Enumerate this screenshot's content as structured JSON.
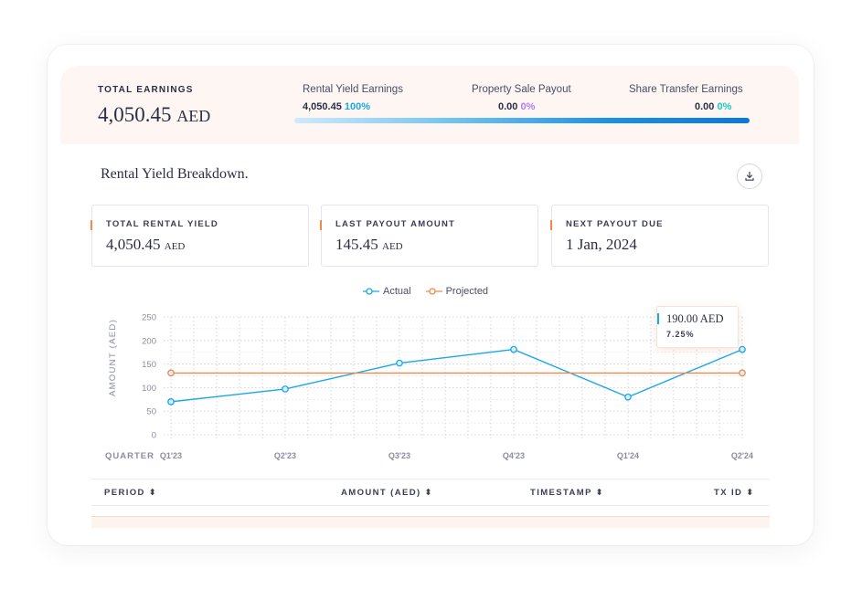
{
  "summary": {
    "total_label": "TOTAL EARNINGS",
    "total_amount": "4,050.45",
    "total_unit": "AED",
    "sources": [
      {
        "label": "Rental Yield Earnings",
        "amount": "4,050.45",
        "pct": "100%"
      },
      {
        "label": "Property Sale Payout",
        "amount": "0.00",
        "pct": "0%"
      },
      {
        "label": "Share Transfer Earnings",
        "amount": "0.00",
        "pct": "0%"
      }
    ]
  },
  "section": {
    "title": "Rental Yield Breakdown.",
    "download_icon": "download-icon"
  },
  "stats": [
    {
      "label": "TOTAL RENTAL YIELD",
      "value": "4,050.45",
      "unit": "AED"
    },
    {
      "label": "LAST PAYOUT AMOUNT",
      "value": "145.45",
      "unit": "AED"
    },
    {
      "label": "NEXT PAYOUT DUE",
      "value": "1 Jan, 2024",
      "unit": ""
    }
  ],
  "tooltip": {
    "value": "190.00 AED",
    "pct": "7.25%"
  },
  "chart_data": {
    "type": "line",
    "title": "",
    "xlabel": "QUARTER",
    "ylabel": "AMOUNT (AED)",
    "categories": [
      "Q1'23",
      "Q2'23",
      "Q3'23",
      "Q4'23",
      "Q1'24",
      "Q2'24"
    ],
    "series": [
      {
        "name": "Actual",
        "values": [
          70,
          97,
          152,
          181,
          80,
          181
        ],
        "color": "#1aa7e8"
      },
      {
        "name": "Projected",
        "values": [
          131,
          131,
          131,
          131,
          131,
          131
        ],
        "color": "#f08a4b"
      }
    ],
    "yticks": [
      "0",
      "50",
      "100",
      "150",
      "200",
      "250"
    ],
    "ylim": [
      0,
      250
    ],
    "grid": true,
    "legend": "top-center"
  },
  "table": {
    "columns": [
      {
        "label": "PERIOD",
        "sort_icon": "sort-icon"
      },
      {
        "label": "AMOUNT (AED)",
        "sort_icon": "sort-icon"
      },
      {
        "label": "TIMESTAMP",
        "sort_icon": "sort-icon"
      },
      {
        "label": "TX ID",
        "sort_icon": "sort-icon"
      }
    ],
    "sort_glyph": "⬍"
  },
  "colors": {
    "accent_orange": "#f08a4b",
    "accent_blue": "#1aa7e8",
    "summary_bg": "#fdf6f2"
  }
}
